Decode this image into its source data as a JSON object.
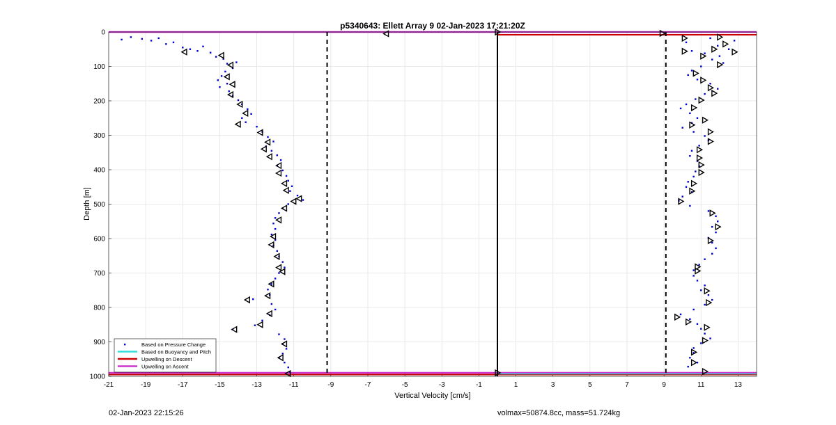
{
  "footer": {
    "left": "02-Jan-2023 22:15:26",
    "right": "volmax=50874.8cc, mass=51.724kg"
  },
  "chart_data": {
    "type": "scatter",
    "title": "p5340643: Ellett Array 9 02-Jan-2023 17:21:20Z",
    "xlabel": "Vertical Velocity [cm/s]",
    "ylabel": "Depth [m]",
    "xlim": [
      -21,
      14
    ],
    "ylim": [
      0,
      1000
    ],
    "y_reversed": true,
    "grid": true,
    "xticks": [
      -21,
      -19,
      -17,
      -15,
      -13,
      -11,
      -9,
      -7,
      -5,
      -3,
      -1,
      1,
      3,
      5,
      7,
      9,
      11,
      13
    ],
    "yticks": [
      0,
      100,
      200,
      300,
      400,
      500,
      600,
      700,
      800,
      900,
      1000
    ],
    "legend_position": "bottom-left",
    "legend": [
      {
        "label": "Based on Pressure Change",
        "style": "dot",
        "color": "#0000cc"
      },
      {
        "label": "Based on Buoyancy and Pitch",
        "style": "line",
        "color": "#33dddd"
      },
      {
        "label": "Upwelling on Descent",
        "style": "line",
        "color": "#cc0000"
      },
      {
        "label": "Upwelling on Ascent",
        "style": "line",
        "color": "#cc33cc"
      }
    ],
    "reference_lines": {
      "vertical_solid_x": 0,
      "vertical_dashed_x": [
        -9.2,
        9.1
      ],
      "upwelling_descent_depths": [
        8,
        995
      ],
      "upwelling_ascent_depths": [
        0,
        990
      ],
      "buoyancy_pitch_depth": 993
    },
    "series": [
      {
        "name": "Based on Pressure Change",
        "color": "#0000cc",
        "points": [
          [
            -20.3,
            22
          ],
          [
            -19.8,
            15
          ],
          [
            -19.2,
            20
          ],
          [
            -18.7,
            25
          ],
          [
            -18.3,
            18
          ],
          [
            -17.9,
            35
          ],
          [
            -17.5,
            30
          ],
          [
            -17.0,
            45
          ],
          [
            -16.6,
            50
          ],
          [
            -16.2,
            55
          ],
          [
            -15.9,
            42
          ],
          [
            -15.5,
            60
          ],
          [
            -15.2,
            72
          ],
          [
            -14.8,
            78
          ],
          [
            -14.6,
            92
          ],
          [
            -14.3,
            105
          ],
          [
            -14.1,
            88
          ],
          [
            -14.7,
            115
          ],
          [
            -14.9,
            128
          ],
          [
            -15.1,
            140
          ],
          [
            -14.6,
            150
          ],
          [
            -15.0,
            160
          ],
          [
            -14.5,
            172
          ],
          [
            -14.3,
            185
          ],
          [
            -14.0,
            198
          ],
          [
            -13.8,
            210
          ],
          [
            -13.5,
            224
          ],
          [
            -13.3,
            238
          ],
          [
            -13.8,
            250
          ],
          [
            -13.6,
            262
          ],
          [
            -13.0,
            275
          ],
          [
            -12.7,
            290
          ],
          [
            -12.4,
            305
          ],
          [
            -12.1,
            318
          ],
          [
            -12.5,
            332
          ],
          [
            -12.2,
            345
          ],
          [
            -11.9,
            358
          ],
          [
            -11.7,
            372
          ],
          [
            -11.9,
            388
          ],
          [
            -11.6,
            402
          ],
          [
            -11.4,
            418
          ],
          [
            -11.3,
            432
          ],
          [
            -11.1,
            448
          ],
          [
            -11.2,
            462
          ],
          [
            -10.8,
            475
          ],
          [
            -10.5,
            488
          ],
          [
            -11.3,
            500
          ],
          [
            -11.6,
            512
          ],
          [
            -11.8,
            526
          ],
          [
            -12.0,
            540
          ],
          [
            -12.1,
            556
          ],
          [
            -12.0,
            572
          ],
          [
            -12.2,
            588
          ],
          [
            -12.0,
            604
          ],
          [
            -12.1,
            620
          ],
          [
            -11.9,
            636
          ],
          [
            -11.8,
            652
          ],
          [
            -11.6,
            668
          ],
          [
            -11.5,
            684
          ],
          [
            -11.8,
            700
          ],
          [
            -12.0,
            716
          ],
          [
            -12.2,
            732
          ],
          [
            -12.4,
            748
          ],
          [
            -12.3,
            764
          ],
          [
            -13.2,
            776
          ],
          [
            -12.2,
            790
          ],
          [
            -12.0,
            806
          ],
          [
            -12.3,
            822
          ],
          [
            -12.7,
            838
          ],
          [
            -13.1,
            852
          ],
          [
            -14.3,
            864
          ],
          [
            -11.8,
            878
          ],
          [
            -11.5,
            892
          ],
          [
            -11.6,
            906
          ],
          [
            -11.4,
            920
          ],
          [
            -11.6,
            934
          ],
          [
            -11.8,
            946
          ],
          [
            -11.5,
            960
          ],
          [
            -11.3,
            974
          ],
          [
            -11.2,
            988
          ],
          [
            11.5,
            18
          ],
          [
            12.8,
            25
          ],
          [
            10.2,
            30
          ],
          [
            11.9,
            40
          ],
          [
            12.5,
            50
          ],
          [
            10.5,
            55
          ],
          [
            11.2,
            62
          ],
          [
            12.0,
            70
          ],
          [
            11.6,
            80
          ],
          [
            12.2,
            90
          ],
          [
            11.0,
            100
          ],
          [
            10.5,
            112
          ],
          [
            10.3,
            125
          ],
          [
            10.8,
            138
          ],
          [
            11.5,
            150
          ],
          [
            11.9,
            165
          ],
          [
            11.2,
            180
          ],
          [
            10.7,
            195
          ],
          [
            10.2,
            210
          ],
          [
            9.9,
            222
          ],
          [
            10.4,
            236
          ],
          [
            10.8,
            250
          ],
          [
            10.5,
            264
          ],
          [
            10.0,
            278
          ],
          [
            10.6,
            290
          ],
          [
            11.2,
            302
          ],
          [
            11.4,
            315
          ],
          [
            10.9,
            330
          ],
          [
            10.5,
            345
          ],
          [
            10.4,
            360
          ],
          [
            10.8,
            375
          ],
          [
            10.9,
            390
          ],
          [
            10.7,
            405
          ],
          [
            10.6,
            420
          ],
          [
            10.3,
            435
          ],
          [
            10.2,
            450
          ],
          [
            10.5,
            465
          ],
          [
            10.0,
            478
          ],
          [
            9.8,
            490
          ],
          [
            10.4,
            505
          ],
          [
            11.4,
            520
          ],
          [
            11.8,
            535
          ],
          [
            11.9,
            550
          ],
          [
            11.6,
            566
          ],
          [
            11.8,
            582
          ],
          [
            11.4,
            598
          ],
          [
            11.6,
            612
          ],
          [
            11.8,
            628
          ],
          [
            11.6,
            644
          ],
          [
            11.2,
            660
          ],
          [
            10.9,
            676
          ],
          [
            10.6,
            692
          ],
          [
            10.6,
            708
          ],
          [
            10.8,
            722
          ],
          [
            11.2,
            736
          ],
          [
            11.0,
            750
          ],
          [
            11.4,
            764
          ],
          [
            11.6,
            778
          ],
          [
            11.2,
            792
          ],
          [
            10.6,
            806
          ],
          [
            9.9,
            820
          ],
          [
            10.4,
            834
          ],
          [
            10.8,
            848
          ],
          [
            11.0,
            862
          ],
          [
            11.2,
            876
          ],
          [
            11.5,
            890
          ],
          [
            11.0,
            904
          ],
          [
            10.6,
            918
          ],
          [
            10.6,
            932
          ],
          [
            10.4,
            946
          ],
          [
            10.8,
            960
          ],
          [
            10.3,
            972
          ]
        ]
      }
    ],
    "markers": {
      "style": "open-triangle",
      "color": "#000000",
      "points": [
        [
          -16.9,
          58
        ],
        [
          -14.9,
          68
        ],
        [
          -14.4,
          96
        ],
        [
          -14.6,
          130
        ],
        [
          -14.3,
          152
        ],
        [
          -14.4,
          182
        ],
        [
          -13.9,
          210
        ],
        [
          -13.6,
          236
        ],
        [
          -14.0,
          268
        ],
        [
          -12.8,
          292
        ],
        [
          -12.4,
          320
        ],
        [
          -12.6,
          340
        ],
        [
          -12.3,
          362
        ],
        [
          -11.8,
          388
        ],
        [
          -11.8,
          410
        ],
        [
          -11.5,
          440
        ],
        [
          -11.4,
          460
        ],
        [
          -10.7,
          484
        ],
        [
          -11.0,
          492
        ],
        [
          -11.5,
          512
        ],
        [
          -11.8,
          546
        ],
        [
          -12.1,
          594
        ],
        [
          -12.2,
          618
        ],
        [
          -11.9,
          652
        ],
        [
          -11.8,
          684
        ],
        [
          -11.6,
          696
        ],
        [
          -12.2,
          732
        ],
        [
          -12.4,
          766
        ],
        [
          -13.5,
          778
        ],
        [
          -12.3,
          818
        ],
        [
          -12.8,
          850
        ],
        [
          -14.2,
          864
        ],
        [
          -11.5,
          906
        ],
        [
          -11.7,
          946
        ],
        [
          -11.3,
          992
        ],
        [
          -6.0,
          5
        ],
        [
          0.0,
          0
        ],
        [
          0.0,
          990
        ],
        [
          8.9,
          4
        ],
        [
          10.1,
          18
        ],
        [
          10.1,
          56
        ],
        [
          11.7,
          50
        ],
        [
          12.3,
          35
        ],
        [
          12.0,
          15
        ],
        [
          12.8,
          58
        ],
        [
          11.1,
          70
        ],
        [
          12.0,
          95
        ],
        [
          10.7,
          120
        ],
        [
          11.1,
          140
        ],
        [
          11.5,
          162
        ],
        [
          11.7,
          178
        ],
        [
          11.0,
          198
        ],
        [
          10.6,
          220
        ],
        [
          11.2,
          256
        ],
        [
          10.5,
          270
        ],
        [
          11.5,
          290
        ],
        [
          11.5,
          318
        ],
        [
          10.9,
          342
        ],
        [
          10.9,
          366
        ],
        [
          11.0,
          386
        ],
        [
          11.0,
          408
        ],
        [
          10.6,
          440
        ],
        [
          10.5,
          462
        ],
        [
          9.9,
          492
        ],
        [
          11.6,
          526
        ],
        [
          11.9,
          566
        ],
        [
          11.5,
          606
        ],
        [
          10.8,
          682
        ],
        [
          10.8,
          694
        ],
        [
          11.3,
          752
        ],
        [
          11.4,
          786
        ],
        [
          9.7,
          828
        ],
        [
          10.3,
          842
        ],
        [
          11.3,
          858
        ],
        [
          11.2,
          896
        ],
        [
          10.6,
          930
        ],
        [
          10.6,
          960
        ],
        [
          11.2,
          986
        ]
      ]
    }
  }
}
